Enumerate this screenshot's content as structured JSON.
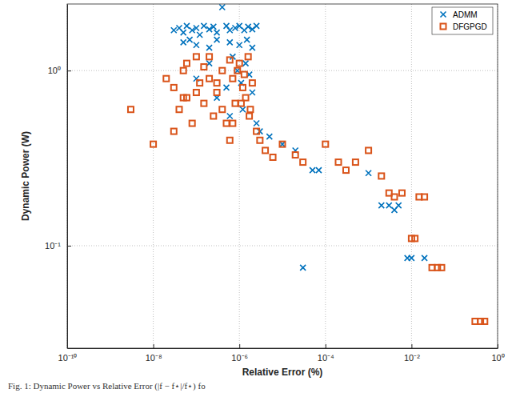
{
  "chart_data": {
    "type": "scatter",
    "x_label": "Relative Error (%)",
    "y_label": "Dynamic Power (W)",
    "caption": "Fig. 1: Dynamic Power vs Relative Error (|f − f⋆|/f⋆) fo",
    "log": true,
    "grid": true,
    "legend": "top-right",
    "xlim": [
      1e-10,
      1
    ],
    "ylim": [
      0.026,
      2.4
    ],
    "xticks": [
      {
        "value": 1e-10,
        "label": "10⁻¹⁰"
      },
      {
        "value": 1e-08,
        "label": "10⁻⁸"
      },
      {
        "value": 1e-06,
        "label": "10⁻⁶"
      },
      {
        "value": 0.0001,
        "label": "10⁻⁴"
      },
      {
        "value": 0.01,
        "label": "10⁻²"
      },
      {
        "value": 1,
        "label": "10⁰"
      }
    ],
    "yticks": [
      {
        "value": 0.1,
        "label": "10⁻¹"
      },
      {
        "value": 1,
        "label": "10⁰"
      }
    ],
    "series": [
      {
        "name": "ADMM",
        "color": "#0072BD",
        "marker": "x",
        "x": [
          3e-08,
          4e-08,
          5e-08,
          6e-08,
          8e-08,
          1e-07,
          1.2e-07,
          1.5e-07,
          2e-07,
          2.5e-07,
          3e-07,
          4e-07,
          5e-07,
          6e-07,
          8e-07,
          1e-06,
          1.3e-06,
          1.6e-06,
          2e-06,
          2.5e-06,
          5e-08,
          7e-08,
          1e-07,
          2e-07,
          3e-07,
          6e-07,
          1e-06,
          1.5e-06,
          2e-06,
          1e-07,
          2e-07,
          3e-07,
          5e-07,
          7e-07,
          9e-07,
          1.1e-06,
          1.4e-06,
          1.7e-06,
          2e-06,
          6e-07,
          1.2e-06,
          2.5e-06,
          3e-06,
          5e-06,
          1e-05,
          2e-05,
          5e-05,
          7e-05,
          3e-05,
          0.001,
          0.002,
          0.003,
          0.004,
          0.005,
          0.008,
          0.01,
          0.02
        ],
        "values": [
          1.7,
          1.75,
          1.65,
          1.8,
          1.7,
          1.75,
          1.6,
          1.8,
          1.72,
          1.78,
          1.65,
          2.3,
          1.8,
          1.7,
          1.75,
          1.8,
          1.7,
          1.78,
          1.72,
          1.8,
          1.45,
          1.5,
          1.4,
          1.35,
          1.5,
          1.45,
          1.4,
          1.5,
          1.35,
          0.9,
          1.1,
          0.7,
          0.8,
          1.2,
          1.0,
          0.85,
          1.1,
          0.95,
          0.75,
          0.55,
          0.6,
          0.5,
          0.45,
          0.42,
          0.38,
          0.35,
          0.27,
          0.27,
          0.075,
          0.26,
          0.17,
          0.17,
          0.16,
          0.17,
          0.085,
          0.085,
          0.085
        ]
      },
      {
        "name": "DFGPGD",
        "color": "#D95319",
        "marker": "square",
        "x": [
          3e-09,
          1e-08,
          2e-08,
          3e-08,
          4e-08,
          5e-08,
          6e-08,
          8e-08,
          1e-07,
          1.2e-07,
          1.5e-07,
          2e-07,
          2.5e-07,
          3e-07,
          4e-07,
          5e-07,
          6e-07,
          7e-07,
          8e-07,
          1e-06,
          1.2e-06,
          1.4e-06,
          1.6e-06,
          1.8e-06,
          2e-06,
          3e-08,
          6e-08,
          1e-07,
          2e-07,
          4e-07,
          7e-07,
          9e-07,
          1.3e-06,
          1.7e-06,
          5e-08,
          1.5e-07,
          3e-07,
          6e-07,
          1.1e-06,
          2.5e-06,
          3e-06,
          4e-06,
          6e-06,
          1e-05,
          2e-05,
          3e-05,
          0.0001,
          0.0002,
          0.0003,
          0.0005,
          0.001,
          0.002,
          0.003,
          0.004,
          0.006,
          0.015,
          0.02,
          0.01,
          0.012,
          0.03,
          0.04,
          0.05,
          0.3,
          0.4,
          0.5
        ],
        "values": [
          0.6,
          0.38,
          0.9,
          0.8,
          0.6,
          1.0,
          0.7,
          0.5,
          1.2,
          0.85,
          0.65,
          1.2,
          0.55,
          0.75,
          1.0,
          0.5,
          1.15,
          0.9,
          0.65,
          1.1,
          0.8,
          0.7,
          1.2,
          0.6,
          0.85,
          0.45,
          1.1,
          0.75,
          0.9,
          0.6,
          0.5,
          1.0,
          0.95,
          0.55,
          0.7,
          1.05,
          0.85,
          0.4,
          0.65,
          0.45,
          0.4,
          0.35,
          0.32,
          0.38,
          0.33,
          0.3,
          0.38,
          0.3,
          0.27,
          0.3,
          0.35,
          0.25,
          0.2,
          0.19,
          0.2,
          0.19,
          0.19,
          0.11,
          0.11,
          0.075,
          0.075,
          0.075,
          0.037,
          0.037,
          0.037
        ]
      }
    ]
  }
}
